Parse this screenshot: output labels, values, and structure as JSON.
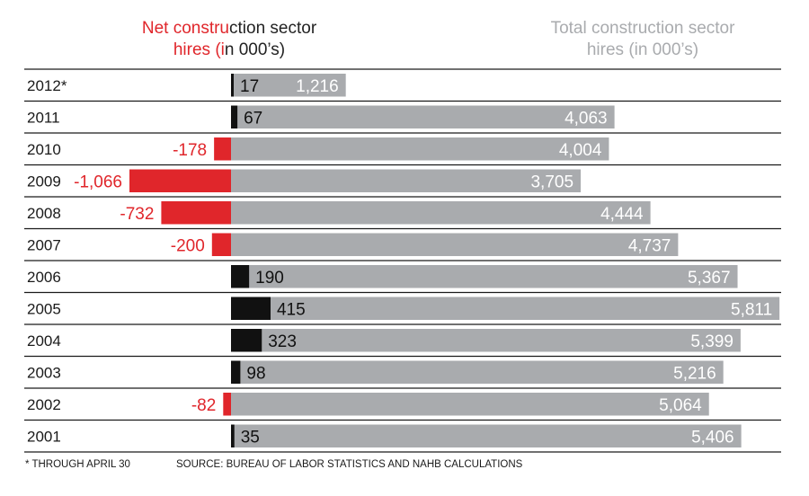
{
  "chart_data": {
    "type": "bar",
    "headers": {
      "net": {
        "red_part": "Net constru",
        "black_part": "ction sector",
        "line2_red": "hires (i",
        "line2_black": "n 000’s)"
      },
      "total": {
        "line1": "Total construction sector",
        "line2": "hires (in 000’s)"
      }
    },
    "categories": [
      "2012*",
      "2011",
      "2010",
      "2009",
      "2008",
      "2007",
      "2006",
      "2005",
      "2004",
      "2003",
      "2002",
      "2001"
    ],
    "series": [
      {
        "name": "Net construction sector hires (in 000’s)",
        "values": [
          17,
          67,
          -178,
          -1066,
          -732,
          -200,
          190,
          415,
          323,
          98,
          -82,
          35
        ],
        "labels": [
          "17",
          "67",
          "-178",
          "-1,066",
          "-732",
          "-200",
          "190",
          "415",
          "323",
          "98",
          "-82",
          "35"
        ]
      },
      {
        "name": "Total construction sector hires (in 000’s)",
        "values": [
          1216,
          4063,
          4004,
          3705,
          4444,
          4737,
          5367,
          5811,
          5399,
          5216,
          5064,
          5406
        ],
        "labels": [
          "1,216",
          "4,063",
          "4,004",
          "3,705",
          "4,444",
          "4,737",
          "5,367",
          "5,811",
          "5,399",
          "5,216",
          "5,064",
          "5,406"
        ]
      }
    ],
    "colors": {
      "positive": "#111111",
      "negative": "#e0262b",
      "total": "#a9abae",
      "grid": "#1a1a1a"
    }
  },
  "footer": {
    "note": "* THROUGH APRIL 30",
    "source": "SOURCE: BUREAU OF LABOR STATISTICS AND NAHB CALCULATIONS"
  }
}
